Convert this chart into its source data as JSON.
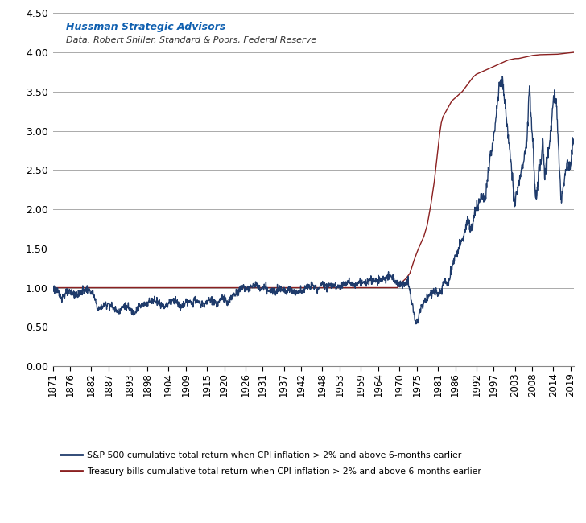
{
  "title_line1": "Hussman Strategic Advisors",
  "title_line2": "Data: Robert Shiller, Standard & Poors, Federal Reserve",
  "ylim": [
    0.0,
    4.5
  ],
  "yticks": [
    0.0,
    0.5,
    1.0,
    1.5,
    2.0,
    2.5,
    3.0,
    3.5,
    4.0,
    4.5
  ],
  "xtick_years": [
    1871,
    1876,
    1882,
    1887,
    1893,
    1898,
    1904,
    1909,
    1915,
    1920,
    1926,
    1931,
    1937,
    1942,
    1948,
    1953,
    1959,
    1964,
    1970,
    1975,
    1981,
    1986,
    1992,
    1997,
    2003,
    2008,
    2014,
    2019
  ],
  "sp500_color": "#1F3B6B",
  "tbill_color": "#8B2020",
  "legend_sp500": "S&P 500 cumulative total return when CPI inflation > 2% and above 6-months earlier",
  "legend_tbill": "Treasury bills cumulative total return when CPI inflation > 2% and above 6-months earlier",
  "annotation_line1": "Hussman Strategic Advisors",
  "annotation_line2": "Data: Robert Shiller, Standard & Poors, Federal Reserve",
  "background_color": "#ffffff",
  "grid_color": "#aaaaaa",
  "linewidth": 1.0
}
